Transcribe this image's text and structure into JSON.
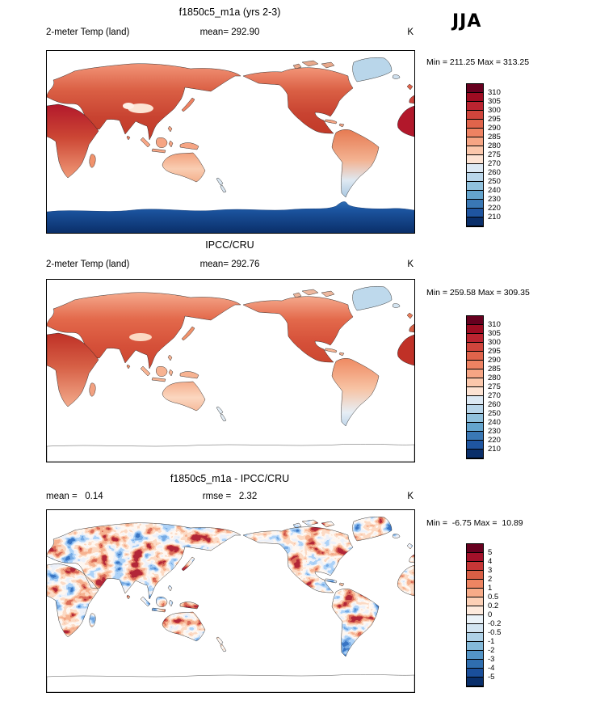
{
  "season": "JJA",
  "panels": [
    {
      "id": "model",
      "title": "f1850c5_m1a (yrs 2-3)",
      "left_label": "2-meter Temp (land)",
      "center_label": "mean= 292.90",
      "units_label": "K",
      "stats": "Min = 211.25 Max = 313.25",
      "colorbar": {
        "labels": [
          "310",
          "305",
          "300",
          "295",
          "290",
          "285",
          "280",
          "275",
          "270",
          "260",
          "250",
          "240",
          "230",
          "220",
          "210"
        ],
        "colors": [
          "#67001f",
          "#9e0c22",
          "#bb2430",
          "#d0453c",
          "#e0644b",
          "#ee8262",
          "#f6a584",
          "#fbc7ab",
          "#fde3d3",
          "#dce9f4",
          "#b9d6ea",
          "#90c1dd",
          "#64a4cd",
          "#3a78b5",
          "#1f55a0",
          "#0a2f6a"
        ]
      }
    },
    {
      "id": "obs",
      "title": "IPCC/CRU",
      "left_label": "2-meter Temp (land)",
      "center_label": "mean= 292.76",
      "units_label": "K",
      "stats": "Min = 259.58 Max = 309.35",
      "colorbar": {
        "labels": [
          "310",
          "305",
          "300",
          "295",
          "290",
          "285",
          "280",
          "275",
          "270",
          "260",
          "250",
          "240",
          "230",
          "220",
          "210"
        ],
        "colors": [
          "#67001f",
          "#9e0c22",
          "#bb2430",
          "#d0453c",
          "#e0644b",
          "#ee8262",
          "#f6a584",
          "#fbc7ab",
          "#fde3d3",
          "#dce9f4",
          "#b9d6ea",
          "#90c1dd",
          "#64a4cd",
          "#3a78b5",
          "#1f55a0",
          "#0a2f6a"
        ]
      }
    },
    {
      "id": "diff",
      "title": "f1850c5_m1a - IPCC/CRU",
      "left_label": "mean =   0.14",
      "center_label": "rmse =   2.32",
      "units_label": "K",
      "stats": "Min =  -6.75 Max =  10.89",
      "colorbar": {
        "labels": [
          "5",
          "4",
          "3",
          "2",
          "1",
          "0.5",
          "0.2",
          "0",
          "-0.2",
          "-0.5",
          "-1",
          "-2",
          "-3",
          "-4",
          "-5"
        ],
        "colors": [
          "#67001f",
          "#a3112a",
          "#c63636",
          "#d95f45",
          "#ee8562",
          "#f7ab88",
          "#fcd0b6",
          "#fdeadd",
          "#eaf2f8",
          "#d2e4f1",
          "#aed1e7",
          "#84b9d9",
          "#5394c6",
          "#2f6eb0",
          "#1a4f9b",
          "#092f6b"
        ]
      }
    }
  ],
  "chart_data": [
    {
      "type": "heatmap",
      "panel": "model",
      "title": "f1850c5_m1a (yrs 2-3)",
      "variable": "2-meter Temp (land)",
      "season": "JJA",
      "units": "K",
      "mean": 292.9,
      "min": 211.25,
      "max": 313.25,
      "contour_levels": [
        210,
        220,
        230,
        240,
        250,
        260,
        270,
        275,
        280,
        285,
        290,
        295,
        300,
        305,
        310
      ]
    },
    {
      "type": "heatmap",
      "panel": "observations",
      "title": "IPCC/CRU",
      "variable": "2-meter Temp (land)",
      "season": "JJA",
      "units": "K",
      "mean": 292.76,
      "min": 259.58,
      "max": 309.35,
      "contour_levels": [
        210,
        220,
        230,
        240,
        250,
        260,
        270,
        275,
        280,
        285,
        290,
        295,
        300,
        305,
        310
      ]
    },
    {
      "type": "heatmap",
      "panel": "difference",
      "title": "f1850c5_m1a - IPCC/CRU",
      "variable": "2-meter Temp (land)",
      "season": "JJA",
      "units": "K",
      "mean": 0.14,
      "rmse": 2.32,
      "min": -6.75,
      "max": 10.89,
      "contour_levels": [
        -5,
        -4,
        -3,
        -2,
        -1,
        -0.5,
        -0.2,
        0,
        0.2,
        0.5,
        1,
        2,
        3,
        4,
        5
      ]
    }
  ]
}
